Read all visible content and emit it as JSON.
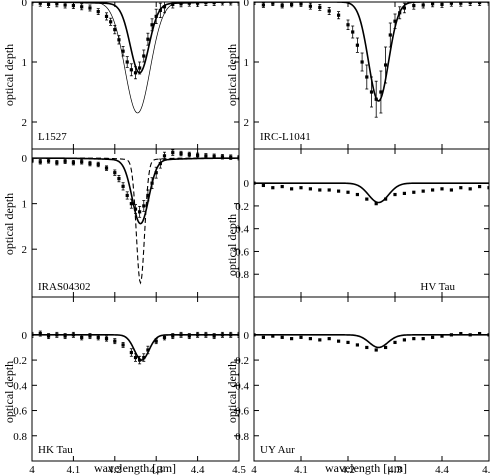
{
  "figure": {
    "xlabel": "wavelength [μm]",
    "ylabel": "optical depth",
    "x_ticks": [
      "4",
      "4.1",
      "4.2",
      "4.3",
      "4.4",
      "4.5"
    ]
  },
  "chart_data": [
    {
      "type": "line",
      "title": "L1527",
      "xlabel": "wavelength [μm]",
      "ylabel": "optical depth",
      "xlim": [
        4.0,
        4.5
      ],
      "ylim": [
        0,
        2.45
      ],
      "y_inverted": true,
      "y_ticks": [
        "0",
        "1",
        "2"
      ],
      "x_ticks": [
        "4",
        "4.1",
        "4.2",
        "4.3",
        "4.4",
        "4.5"
      ],
      "grid": false,
      "series": [
        {
          "style": "observed points with error bars",
          "x": [
            4.0,
            4.02,
            4.04,
            4.06,
            4.08,
            4.1,
            4.12,
            4.14,
            4.16,
            4.18,
            4.19,
            4.2,
            4.21,
            4.22,
            4.23,
            4.24,
            4.25,
            4.26,
            4.27,
            4.28,
            4.29,
            4.3,
            4.31,
            4.32,
            4.34,
            4.36,
            4.38,
            4.4,
            4.42,
            4.44,
            4.46,
            4.48,
            4.5
          ],
          "y": [
            0.0,
            0.02,
            0.04,
            0.03,
            0.05,
            0.06,
            0.08,
            0.1,
            0.16,
            0.24,
            0.33,
            0.46,
            0.63,
            0.82,
            1.0,
            1.13,
            1.18,
            1.1,
            0.9,
            0.62,
            0.38,
            0.24,
            0.14,
            0.08,
            0.04,
            0.03,
            0.02,
            0.02,
            0.01,
            0.01,
            0.0,
            0.0,
            0.0
          ],
          "err": [
            0.05,
            0.05,
            0.05,
            0.05,
            0.05,
            0.05,
            0.05,
            0.05,
            0.05,
            0.06,
            0.06,
            0.07,
            0.07,
            0.08,
            0.09,
            0.1,
            0.1,
            0.1,
            0.1,
            0.1,
            0.1,
            0.12,
            0.12,
            0.1,
            0.06,
            0.05,
            0.05,
            0.05,
            0.05,
            0.05,
            0.05,
            0.05,
            0.05
          ]
        },
        {
          "style": "thick solid model",
          "center": 4.26,
          "depth": 1.15,
          "width": 0.032,
          "wing": 0.03
        },
        {
          "style": "thin solid model",
          "center": 4.255,
          "depth": 1.85,
          "width": 0.043,
          "wing": 0.0
        }
      ]
    },
    {
      "type": "line",
      "title": "IRC-L1041",
      "xlim": [
        4.0,
        4.5
      ],
      "ylim": [
        0,
        2.45
      ],
      "y_inverted": true,
      "y_ticks": [
        "0",
        "1",
        "2"
      ],
      "x_ticks": [
        "4",
        "4.1",
        "4.2",
        "4.3",
        "4.4",
        "4.5"
      ],
      "series": [
        {
          "style": "observed points with error bars",
          "x": [
            4.0,
            4.02,
            4.04,
            4.06,
            4.08,
            4.1,
            4.12,
            4.14,
            4.16,
            4.18,
            4.2,
            4.21,
            4.22,
            4.23,
            4.24,
            4.25,
            4.26,
            4.27,
            4.28,
            4.29,
            4.3,
            4.31,
            4.32,
            4.34,
            4.36,
            4.38,
            4.4,
            4.42,
            4.44,
            4.46,
            4.48,
            4.5
          ],
          "y": [
            0.0,
            0.05,
            0.02,
            0.06,
            0.04,
            0.03,
            0.07,
            0.09,
            0.15,
            0.22,
            0.38,
            0.5,
            0.72,
            1.0,
            1.25,
            1.5,
            1.62,
            1.5,
            1.05,
            0.55,
            0.32,
            0.18,
            0.1,
            0.06,
            0.05,
            0.03,
            0.04,
            0.02,
            0.02,
            0.01,
            0.01,
            0.0
          ],
          "err": [
            0.04,
            0.04,
            0.04,
            0.04,
            0.04,
            0.04,
            0.05,
            0.05,
            0.06,
            0.06,
            0.08,
            0.1,
            0.12,
            0.15,
            0.2,
            0.25,
            0.3,
            0.35,
            0.3,
            0.2,
            0.12,
            0.1,
            0.08,
            0.06,
            0.05,
            0.05,
            0.05,
            0.05,
            0.05,
            0.05,
            0.05,
            0.05
          ]
        },
        {
          "style": "thick solid model",
          "center": 4.265,
          "depth": 1.65,
          "width": 0.03,
          "wing": 0.0
        }
      ]
    },
    {
      "type": "line",
      "title": "IRAS04302",
      "xlim": [
        4.0,
        4.5
      ],
      "ylim": [
        -0.2,
        3.05
      ],
      "y_inverted": true,
      "y_ticks": [
        "0",
        "1",
        "2"
      ],
      "x_ticks": [
        "4",
        "4.1",
        "4.2",
        "4.3",
        "4.4",
        "4.5"
      ],
      "series": [
        {
          "style": "observed points with error bars",
          "x": [
            4.0,
            4.02,
            4.04,
            4.06,
            4.08,
            4.1,
            4.12,
            4.14,
            4.16,
            4.18,
            4.2,
            4.21,
            4.22,
            4.23,
            4.24,
            4.25,
            4.26,
            4.27,
            4.28,
            4.29,
            4.3,
            4.31,
            4.32,
            4.34,
            4.36,
            4.38,
            4.4,
            4.42,
            4.44,
            4.46,
            4.48,
            4.5
          ],
          "y": [
            0.05,
            0.08,
            0.06,
            0.1,
            0.07,
            0.1,
            0.08,
            0.12,
            0.14,
            0.22,
            0.32,
            0.45,
            0.62,
            0.82,
            1.0,
            1.12,
            1.18,
            1.05,
            0.82,
            0.55,
            0.32,
            0.12,
            -0.05,
            -0.12,
            -0.1,
            -0.08,
            -0.06,
            -0.05,
            -0.04,
            -0.03,
            -0.02,
            -0.01
          ],
          "err": [
            0.05,
            0.05,
            0.05,
            0.05,
            0.05,
            0.05,
            0.05,
            0.05,
            0.05,
            0.05,
            0.06,
            0.07,
            0.08,
            0.08,
            0.1,
            0.1,
            0.12,
            0.12,
            0.12,
            0.12,
            0.12,
            0.1,
            0.08,
            0.06,
            0.05,
            0.05,
            0.05,
            0.05,
            0.05,
            0.05,
            0.05,
            0.05
          ]
        },
        {
          "style": "thick solid model",
          "center": 4.262,
          "depth": 1.4,
          "width": 0.028,
          "wing": 0.04
        },
        {
          "style": "dashed model",
          "center": 4.262,
          "depth": 2.7,
          "width": 0.014,
          "wing": 0.04
        }
      ]
    },
    {
      "type": "line",
      "title": "HV Tau",
      "xlim": [
        4.0,
        4.5
      ],
      "ylim": [
        -0.3,
        1.0
      ],
      "y_inverted": true,
      "y_ticks": [
        "0",
        "0.2",
        "0.4",
        "0.6",
        "0.8"
      ],
      "x_ticks": [
        "4",
        "4.1",
        "4.2",
        "4.3",
        "4.4",
        "4.5"
      ],
      "series": [
        {
          "style": "observed points",
          "x": [
            4.0,
            4.02,
            4.04,
            4.06,
            4.08,
            4.1,
            4.12,
            4.14,
            4.16,
            4.18,
            4.2,
            4.22,
            4.24,
            4.26,
            4.28,
            4.3,
            4.32,
            4.34,
            4.36,
            4.38,
            4.4,
            4.42,
            4.44,
            4.46,
            4.48,
            4.5
          ],
          "y": [
            0.0,
            0.02,
            0.04,
            0.03,
            0.05,
            0.04,
            0.05,
            0.06,
            0.06,
            0.07,
            0.08,
            0.1,
            0.14,
            0.18,
            0.14,
            0.1,
            0.09,
            0.08,
            0.07,
            0.06,
            0.05,
            0.06,
            0.04,
            0.05,
            0.03,
            0.04
          ]
        },
        {
          "style": "thick solid model",
          "center": 4.265,
          "depth": 0.17,
          "width": 0.03,
          "wing": 0.0
        }
      ]
    },
    {
      "type": "line",
      "title": "HK Tau",
      "xlim": [
        4.0,
        4.5
      ],
      "ylim": [
        -0.3,
        1.0
      ],
      "y_inverted": true,
      "y_ticks": [
        "0",
        "0.2",
        "0.4",
        "0.6",
        "0.8"
      ],
      "x_ticks": [
        "4",
        "4.1",
        "4.2",
        "4.3",
        "4.4",
        "4.5"
      ],
      "series": [
        {
          "style": "observed points with error bars",
          "x": [
            4.0,
            4.02,
            4.04,
            4.06,
            4.08,
            4.1,
            4.12,
            4.14,
            4.16,
            4.18,
            4.2,
            4.22,
            4.24,
            4.25,
            4.26,
            4.27,
            4.28,
            4.3,
            4.32,
            4.34,
            4.36,
            4.38,
            4.4,
            4.42,
            4.44,
            4.46,
            4.48,
            4.5
          ],
          "y": [
            0.0,
            -0.01,
            0.01,
            0.0,
            0.01,
            0.0,
            0.02,
            0.01,
            0.02,
            0.03,
            0.05,
            0.08,
            0.14,
            0.18,
            0.2,
            0.18,
            0.12,
            0.05,
            0.02,
            0.01,
            0.0,
            0.01,
            0.0,
            0.0,
            0.01,
            0.0,
            0.0,
            0.0
          ],
          "err": [
            0.02,
            0.02,
            0.02,
            0.02,
            0.02,
            0.02,
            0.02,
            0.02,
            0.02,
            0.02,
            0.02,
            0.02,
            0.03,
            0.03,
            0.03,
            0.03,
            0.03,
            0.02,
            0.02,
            0.02,
            0.02,
            0.02,
            0.02,
            0.02,
            0.02,
            0.02,
            0.02,
            0.02
          ]
        },
        {
          "style": "thick solid model",
          "center": 4.265,
          "depth": 0.2,
          "width": 0.025,
          "wing": 0.0
        }
      ]
    },
    {
      "type": "line",
      "title": "UY Aur",
      "xlim": [
        4.0,
        4.5
      ],
      "ylim": [
        -0.3,
        1.0
      ],
      "y_inverted": true,
      "y_ticks": [
        "0",
        "0.2",
        "0.4",
        "0.6",
        "0.8"
      ],
      "x_ticks": [
        "4",
        "4.1",
        "4.2",
        "4.3",
        "4.4",
        "4.5"
      ],
      "series": [
        {
          "style": "observed points",
          "x": [
            4.0,
            4.02,
            4.04,
            4.06,
            4.08,
            4.1,
            4.12,
            4.14,
            4.16,
            4.18,
            4.2,
            4.22,
            4.24,
            4.26,
            4.28,
            4.3,
            4.32,
            4.34,
            4.36,
            4.38,
            4.4,
            4.42,
            4.44,
            4.46,
            4.48,
            4.5
          ],
          "y": [
            0.0,
            0.02,
            0.01,
            0.02,
            0.03,
            0.02,
            0.03,
            0.04,
            0.03,
            0.05,
            0.06,
            0.08,
            0.1,
            0.12,
            0.1,
            0.06,
            0.04,
            0.03,
            0.03,
            0.02,
            0.01,
            0.0,
            -0.01,
            0.0,
            -0.01,
            0.0
          ]
        },
        {
          "style": "thick solid model",
          "center": 4.265,
          "depth": 0.1,
          "width": 0.028,
          "wing": 0.0
        }
      ]
    }
  ]
}
